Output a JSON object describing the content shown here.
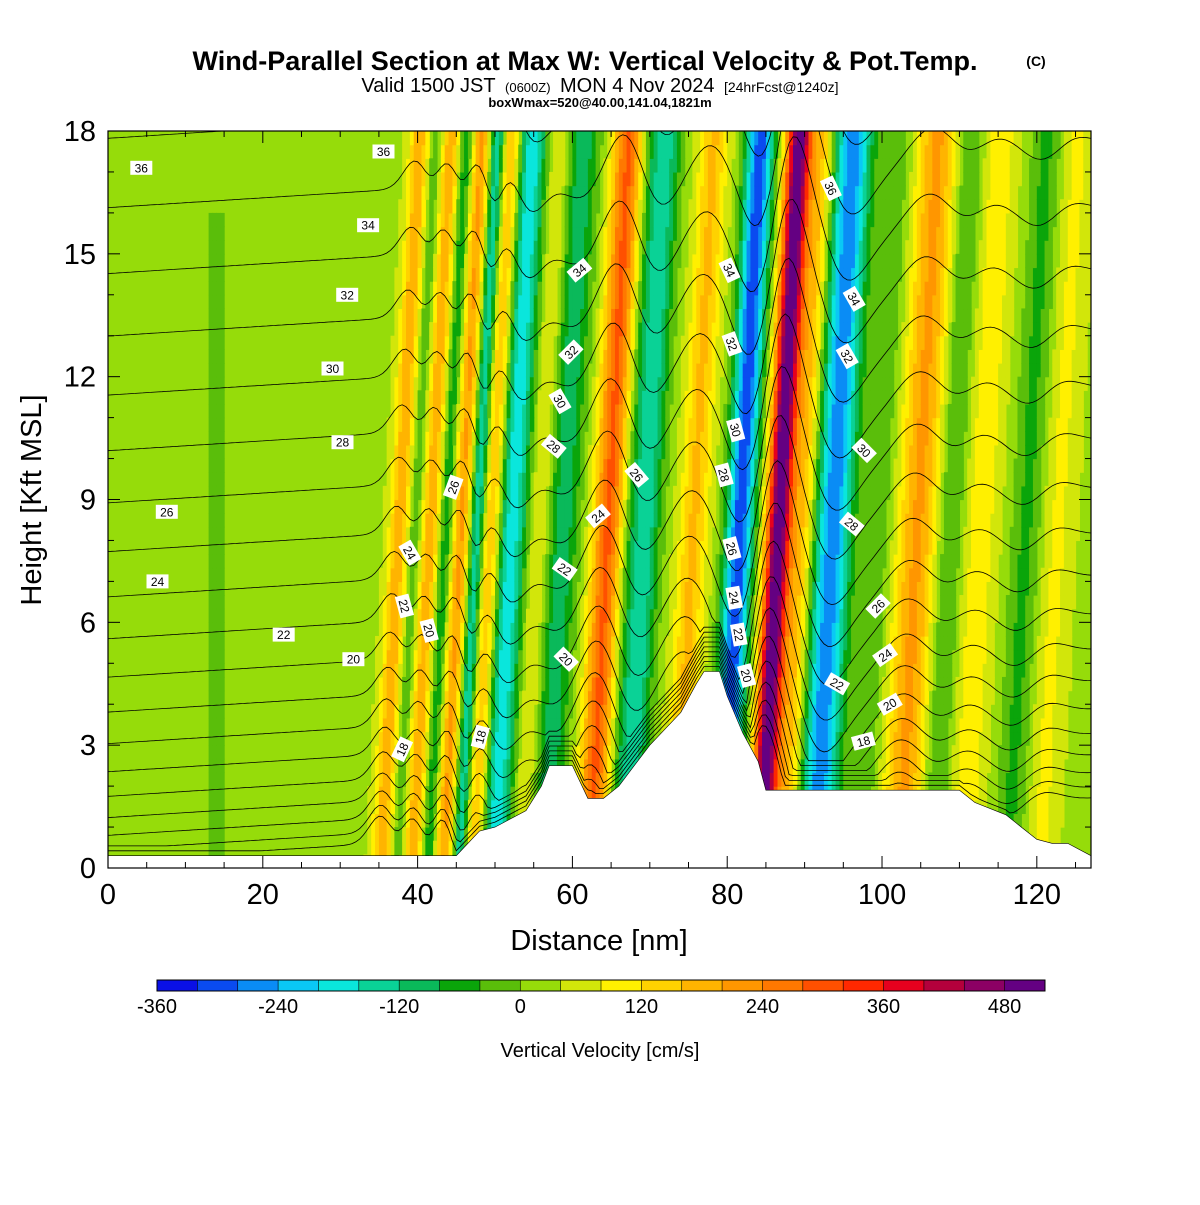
{
  "chart_data": {
    "type": "heatmap",
    "title": "Wind-Parallel Section at Max W: Vertical Velocity & Pot.Temp.",
    "copyright": "(C)",
    "valid_prefix": "Valid 1500 JST",
    "valid_utc": "(0600Z)",
    "valid_date": "MON 4 Nov 2024",
    "forecast": "[24hrFcst@1240z]",
    "box_info": "boxWmax=520@40.00,141.04,1821m",
    "xlabel": "Distance [nm]",
    "ylabel": "Height [Kft MSL]",
    "xlim": [
      0,
      127
    ],
    "ylim": [
      0,
      18
    ],
    "xticks": [
      0,
      20,
      40,
      60,
      80,
      100,
      120
    ],
    "yticks": [
      0,
      3,
      6,
      9,
      12,
      15,
      18
    ],
    "colorbar": {
      "label": "Vertical Velocity [cm/s]",
      "levels": [
        -360,
        -320,
        -280,
        -240,
        -200,
        -160,
        -120,
        -80,
        -40,
        0,
        40,
        80,
        120,
        160,
        200,
        240,
        280,
        320,
        360,
        400,
        440,
        480,
        520
      ],
      "colors": [
        "#0a10e6",
        "#0a4bf0",
        "#0a8cf5",
        "#0ac8f5",
        "#0ae6dc",
        "#0ad296",
        "#0ab95a",
        "#0aa50a",
        "#5abe0a",
        "#96dc0a",
        "#d2e60a",
        "#fff000",
        "#ffd200",
        "#ffb400",
        "#ff9600",
        "#ff7800",
        "#ff5000",
        "#ff2800",
        "#e6001e",
        "#b4003c",
        "#8c0064",
        "#640082"
      ],
      "tick_labels": [
        "-360",
        "-240",
        "-120",
        "0",
        "120",
        "240",
        "360",
        "480"
      ]
    },
    "vertical_velocity_features": [
      {
        "x": 37,
        "w": 1.3,
        "value": 160
      },
      {
        "x": 39,
        "w": 1.0,
        "value": -80
      },
      {
        "x": 41,
        "w": 1.3,
        "value": 160
      },
      {
        "x": 43,
        "w": 1.0,
        "value": -120
      },
      {
        "x": 45,
        "w": 1.3,
        "value": 180
      },
      {
        "x": 47,
        "w": 1.0,
        "value": -200
      },
      {
        "x": 49,
        "w": 1.3,
        "value": 180
      },
      {
        "x": 51.5,
        "w": 2.2,
        "value": -220
      },
      {
        "x": 55,
        "w": 1.8,
        "value": 80
      },
      {
        "x": 58,
        "w": 2.2,
        "value": -140
      },
      {
        "x": 64,
        "w": 2.0,
        "value": 260
      },
      {
        "x": 67,
        "w": 1.6,
        "value": -80
      },
      {
        "x": 69,
        "w": 1.8,
        "value": -160
      },
      {
        "x": 75,
        "w": 1.8,
        "value": 140
      },
      {
        "x": 81,
        "w": 1.8,
        "value": -340
      },
      {
        "x": 86,
        "w": 1.6,
        "value": 500
      },
      {
        "x": 89,
        "w": 1.6,
        "value": 140
      },
      {
        "x": 93,
        "w": 2.4,
        "value": -300
      },
      {
        "x": 99,
        "w": 2.2,
        "value": -60
      },
      {
        "x": 104,
        "w": 2.8,
        "value": 180
      },
      {
        "x": 108,
        "w": 2.0,
        "value": -90
      },
      {
        "x": 112,
        "w": 2.2,
        "value": 80
      },
      {
        "x": 118,
        "w": 2.0,
        "value": -80
      },
      {
        "x": 122,
        "w": 2.0,
        "value": 60
      }
    ],
    "terrain": {
      "x": [
        0,
        45,
        46,
        48,
        50,
        52,
        54,
        56,
        57,
        60,
        62,
        64,
        66,
        68,
        70,
        72,
        74,
        76,
        77,
        79,
        80,
        82,
        84,
        85,
        86,
        90,
        94,
        96,
        100,
        104,
        110,
        112,
        116,
        118,
        120,
        122,
        124,
        127
      ],
      "y": [
        0.3,
        0.3,
        0.5,
        0.9,
        1.0,
        1.2,
        1.4,
        2.0,
        2.5,
        2.5,
        1.7,
        1.7,
        2.0,
        2.5,
        3.0,
        3.4,
        3.8,
        4.5,
        4.8,
        4.8,
        4.2,
        3.3,
        2.6,
        1.9,
        1.9,
        1.9,
        1.9,
        1.9,
        1.9,
        1.9,
        1.9,
        1.6,
        1.3,
        1.0,
        0.7,
        0.6,
        0.6,
        0.3
      ]
    },
    "theta_levels": [
      16,
      17,
      18,
      19,
      20,
      21,
      22,
      23,
      24,
      25,
      26,
      27,
      28,
      29,
      30,
      31,
      32,
      33,
      34,
      35,
      36,
      37
    ],
    "theta_labels": [
      {
        "text": "36",
        "x": 4.3,
        "y": 17.1,
        "angle": 0
      },
      {
        "text": "36",
        "x": 35.6,
        "y": 17.5,
        "angle": 0
      },
      {
        "text": "34",
        "x": 33.6,
        "y": 15.7,
        "angle": 0
      },
      {
        "text": "32",
        "x": 30.9,
        "y": 14.0,
        "angle": 0
      },
      {
        "text": "30",
        "x": 29.0,
        "y": 12.2,
        "angle": 0
      },
      {
        "text": "28",
        "x": 30.3,
        "y": 10.4,
        "angle": 0
      },
      {
        "text": "26",
        "x": 7.6,
        "y": 8.7,
        "angle": 0
      },
      {
        "text": "24",
        "x": 6.4,
        "y": 7.0,
        "angle": 0
      },
      {
        "text": "22",
        "x": 22.7,
        "y": 5.7,
        "angle": 0
      },
      {
        "text": "20",
        "x": 31.7,
        "y": 5.1,
        "angle": 0
      },
      {
        "text": "18",
        "x": 38.0,
        "y": 2.9,
        "angle": -65
      },
      {
        "text": "20",
        "x": 41.5,
        "y": 5.8,
        "angle": 75
      },
      {
        "text": "22",
        "x": 38.3,
        "y": 6.4,
        "angle": 75
      },
      {
        "text": "24",
        "x": 39.0,
        "y": 7.7,
        "angle": 60
      },
      {
        "text": "26",
        "x": 44.6,
        "y": 9.3,
        "angle": -70
      },
      {
        "text": "18",
        "x": 48.1,
        "y": 3.2,
        "angle": -75
      },
      {
        "text": "20",
        "x": 59.2,
        "y": 5.1,
        "angle": 45
      },
      {
        "text": "22",
        "x": 59.0,
        "y": 7.3,
        "angle": 35
      },
      {
        "text": "24",
        "x": 63.3,
        "y": 8.6,
        "angle": -40
      },
      {
        "text": "26",
        "x": 68.3,
        "y": 9.6,
        "angle": 50
      },
      {
        "text": "28",
        "x": 57.6,
        "y": 10.3,
        "angle": 40
      },
      {
        "text": "30",
        "x": 58.4,
        "y": 11.4,
        "angle": 60
      },
      {
        "text": "32",
        "x": 59.8,
        "y": 12.6,
        "angle": -45
      },
      {
        "text": "34",
        "x": 60.9,
        "y": 14.6,
        "angle": -40
      },
      {
        "text": "34",
        "x": 80.3,
        "y": 14.6,
        "angle": 65
      },
      {
        "text": "32",
        "x": 80.6,
        "y": 12.8,
        "angle": 70
      },
      {
        "text": "30",
        "x": 81.1,
        "y": 10.7,
        "angle": 75
      },
      {
        "text": "28",
        "x": 79.6,
        "y": 9.6,
        "angle": 75
      },
      {
        "text": "26",
        "x": 80.6,
        "y": 7.8,
        "angle": 75
      },
      {
        "text": "24",
        "x": 80.9,
        "y": 6.6,
        "angle": 80
      },
      {
        "text": "22",
        "x": 81.5,
        "y": 5.7,
        "angle": 80
      },
      {
        "text": "20",
        "x": 82.5,
        "y": 4.7,
        "angle": 75
      },
      {
        "text": "36",
        "x": 93.4,
        "y": 16.6,
        "angle": 65
      },
      {
        "text": "34",
        "x": 96.4,
        "y": 13.9,
        "angle": 60
      },
      {
        "text": "32",
        "x": 95.5,
        "y": 12.5,
        "angle": 60
      },
      {
        "text": "30",
        "x": 97.7,
        "y": 10.2,
        "angle": 45
      },
      {
        "text": "28",
        "x": 96.1,
        "y": 8.4,
        "angle": 40
      },
      {
        "text": "26",
        "x": 99.5,
        "y": 6.4,
        "angle": -45
      },
      {
        "text": "24",
        "x": 100.4,
        "y": 5.2,
        "angle": -35
      },
      {
        "text": "22",
        "x": 94.2,
        "y": 4.5,
        "angle": 30
      },
      {
        "text": "20",
        "x": 101.0,
        "y": 4.0,
        "angle": -30
      },
      {
        "text": "18",
        "x": 97.6,
        "y": 3.1,
        "angle": -15
      }
    ]
  }
}
